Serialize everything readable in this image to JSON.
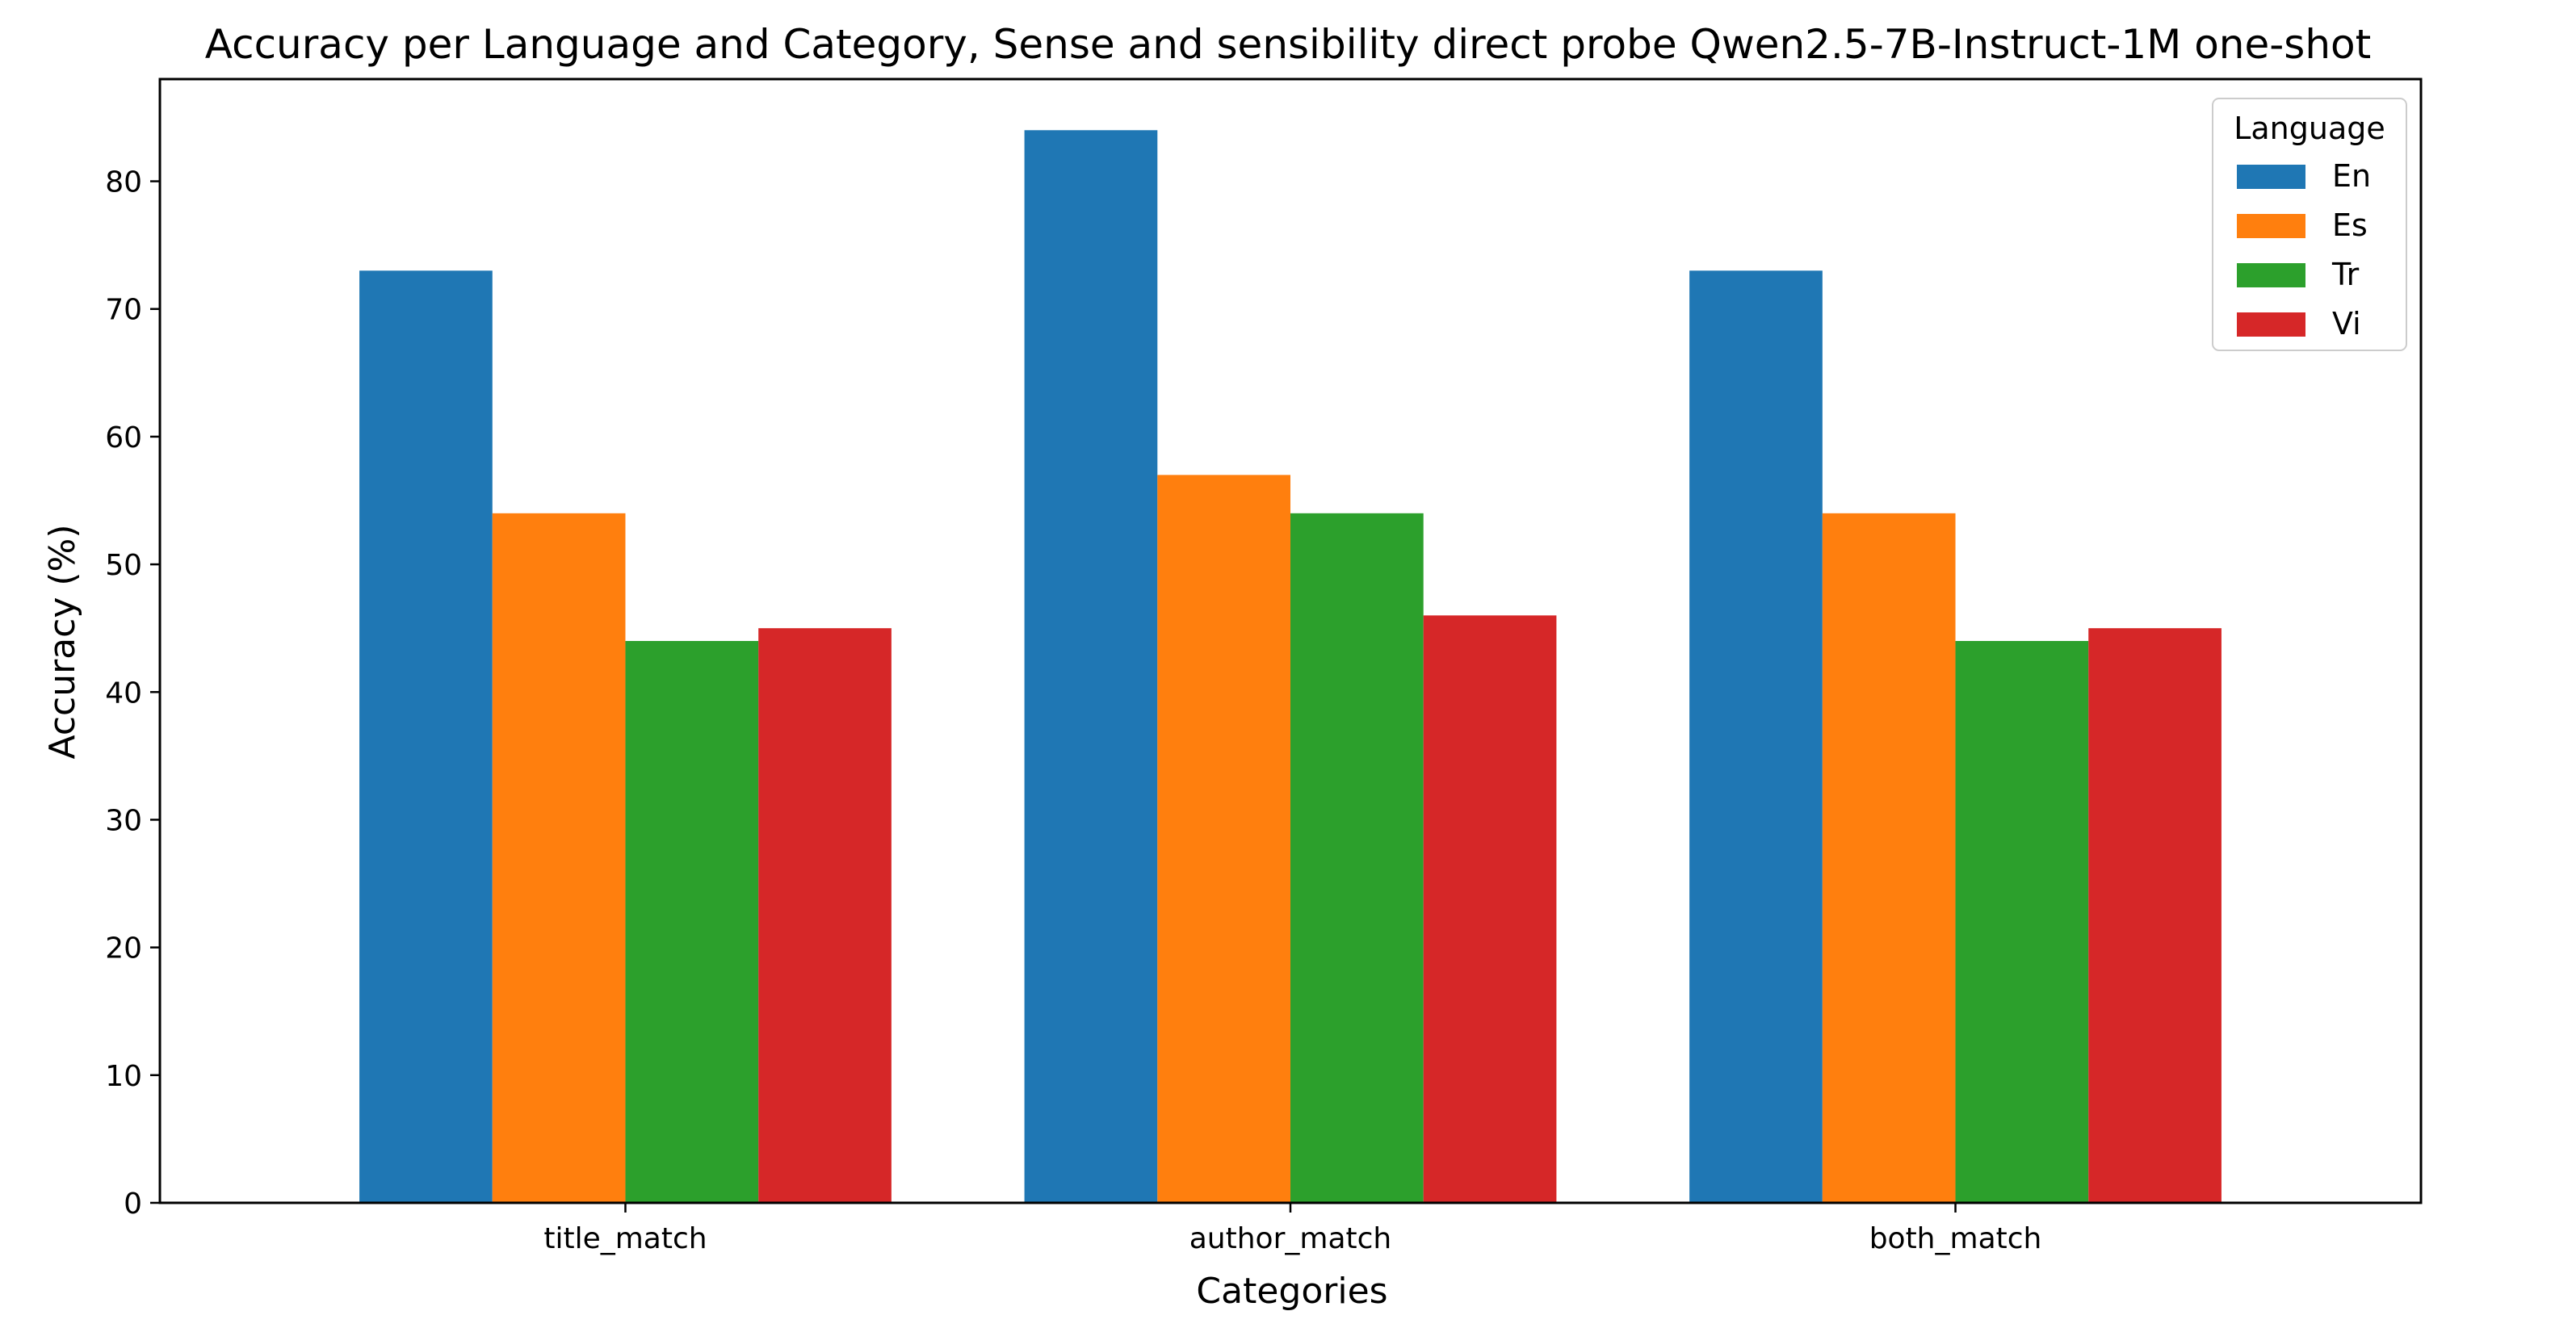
{
  "chart_data": {
    "type": "bar",
    "title": "Accuracy per Language and Category, Sense and sensibility direct probe Qwen2.5-7B-Instruct-1M one-shot",
    "xlabel": "Categories",
    "ylabel": "Accuracy (%)",
    "categories": [
      "title_match",
      "author_match",
      "both_match"
    ],
    "ylim": [
      0,
      88
    ],
    "yticks": [
      0,
      10,
      20,
      30,
      40,
      50,
      60,
      70,
      80
    ],
    "grid": false,
    "legend": {
      "title": "Language",
      "placement": "top-right"
    },
    "series": [
      {
        "name": "En",
        "color": "#1f77b4",
        "values": [
          73,
          84,
          73
        ]
      },
      {
        "name": "Es",
        "color": "#ff7f0e",
        "values": [
          54,
          57,
          54
        ]
      },
      {
        "name": "Tr",
        "color": "#2ca02c",
        "values": [
          44,
          54,
          44
        ]
      },
      {
        "name": "Vi",
        "color": "#d62728",
        "values": [
          45,
          46,
          45
        ]
      }
    ]
  }
}
